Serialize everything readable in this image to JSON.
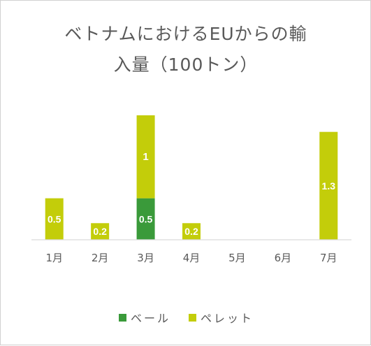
{
  "chart_data": {
    "type": "bar",
    "stacked": true,
    "title_lines": [
      "ベトナムにおけるEUからの輸",
      "入量（100トン）"
    ],
    "categories": [
      "1月",
      "2月",
      "3月",
      "4月",
      "5月",
      "6月",
      "7月"
    ],
    "series": [
      {
        "name": "ベール",
        "color": "#3a9a3a",
        "values": [
          0,
          0,
          0.5,
          0,
          0,
          0,
          0
        ],
        "labels": [
          "",
          "",
          "0.5",
          "",
          "",
          "",
          ""
        ]
      },
      {
        "name": "ペレット",
        "color": "#c3cd0a",
        "values": [
          0.5,
          0.2,
          1,
          0.2,
          0,
          0,
          1.3
        ],
        "labels": [
          "0.5",
          "0.2",
          "1",
          "0.2",
          "",
          "",
          "1.3"
        ]
      }
    ],
    "ylim": [
      0,
      1.55
    ],
    "grid": false,
    "legend_position": "bottom"
  }
}
